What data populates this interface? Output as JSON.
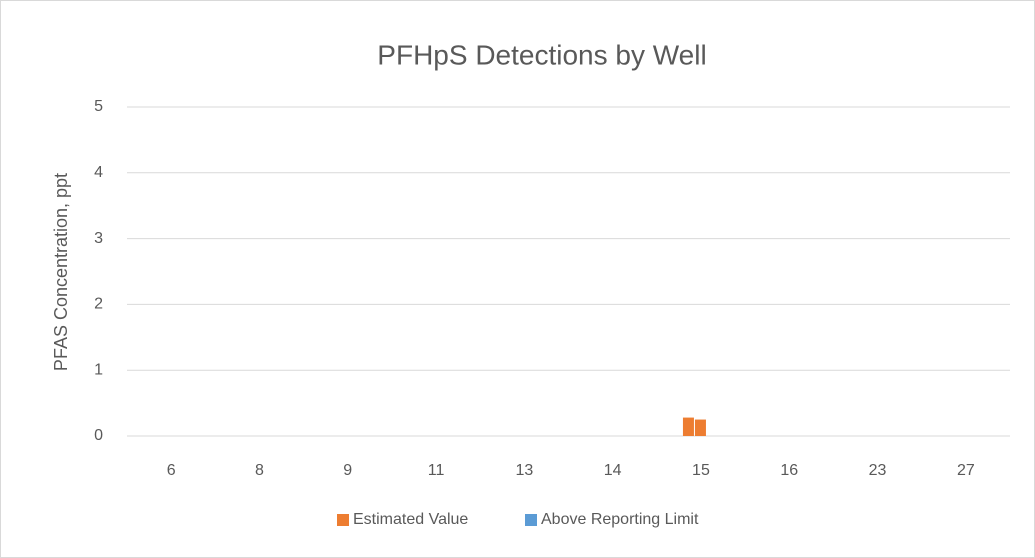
{
  "chart_data": {
    "type": "bar",
    "title": "PFHpS Detections by Well",
    "ylabel": "PFAS Concentration, ppt",
    "categories": [
      "6",
      "8",
      "9",
      "11",
      "13",
      "14",
      "15",
      "16",
      "23",
      "27"
    ],
    "series": [
      {
        "name": "Estimated Value",
        "color": "#ED7D31",
        "values": [
          null,
          null,
          null,
          null,
          null,
          null,
          [
            0.28,
            0.25
          ],
          null,
          null,
          null
        ]
      },
      {
        "name": "Above Reporting Limit",
        "color": "#5B9BD5",
        "values": [
          null,
          null,
          null,
          null,
          null,
          null,
          null,
          null,
          null,
          null
        ]
      }
    ],
    "ylim": [
      0,
      5
    ],
    "yticks": [
      0,
      1,
      2,
      3,
      4,
      5
    ],
    "grid": true,
    "legend": "bottom"
  }
}
